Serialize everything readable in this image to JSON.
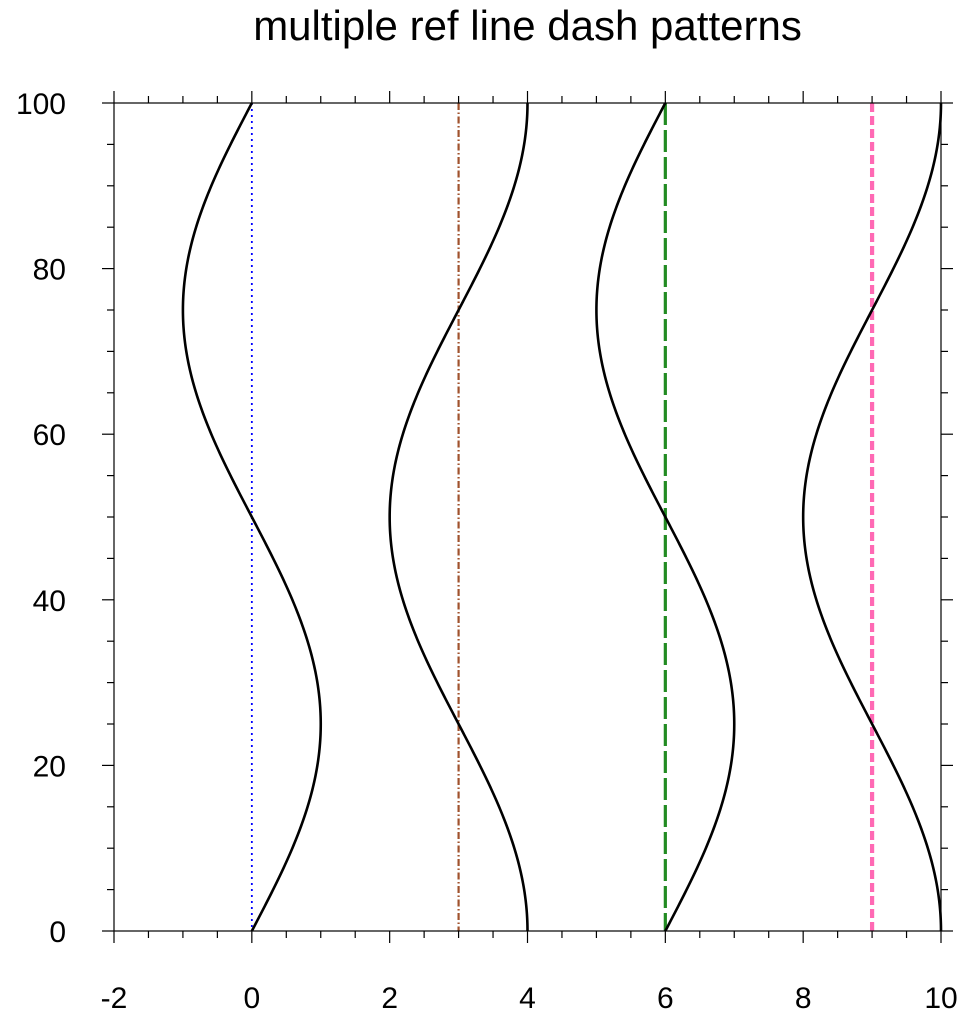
{
  "chart_data": {
    "type": "line",
    "title": "multiple ref line dash patterns",
    "xlabel": "",
    "ylabel": "",
    "xlim": [
      -2,
      10
    ],
    "ylim": [
      0,
      100
    ],
    "x_ticks": [
      "-2",
      "0",
      "2",
      "4",
      "6",
      "8",
      "10"
    ],
    "y_ticks": [
      "0",
      "20",
      "40",
      "60",
      "80",
      "100"
    ],
    "x_minor_step": 0.5,
    "y_minor_step": 5,
    "grid": false,
    "legend": "none",
    "series": [
      {
        "color": "#000000",
        "style": "solid",
        "x_center": 0,
        "x_amplitude": 1,
        "phase": 0,
        "y_period": 100
      },
      {
        "color": "#000000",
        "style": "solid",
        "x_center": 3,
        "x_amplitude": 1,
        "phase": 1.5708,
        "y_period": 100
      },
      {
        "color": "#000000",
        "style": "solid",
        "x_center": 6,
        "x_amplitude": 1,
        "phase": 0,
        "y_period": 100
      },
      {
        "color": "#000000",
        "style": "solid",
        "x_center": 9,
        "x_amplitude": 1,
        "phase": 1.5708,
        "y_period": 100
      }
    ],
    "reference_lines": [
      {
        "x": 0,
        "color": "#0000ff",
        "style": "dotted"
      },
      {
        "x": 3,
        "color": "#a0522d",
        "style": "dash-dot"
      },
      {
        "x": 6,
        "color": "#228b22",
        "style": "long-dash"
      },
      {
        "x": 9,
        "color": "#ff69b4",
        "style": "dashed"
      }
    ]
  }
}
